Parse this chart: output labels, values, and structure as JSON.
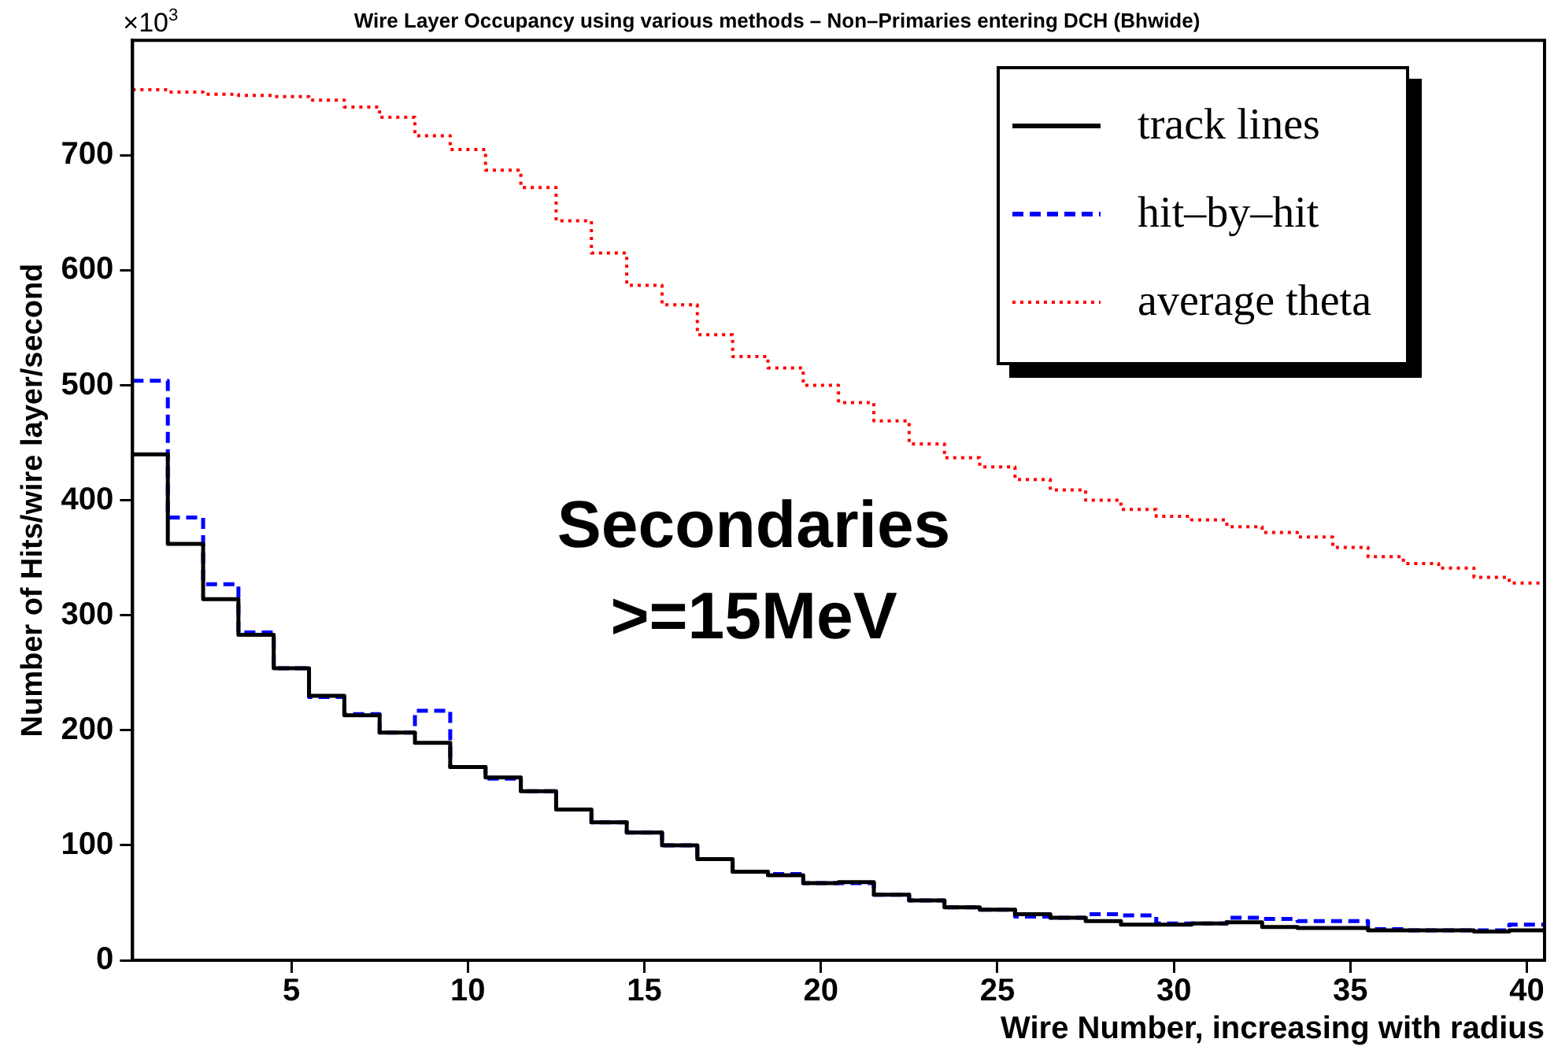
{
  "chart_data": {
    "type": "histogram",
    "title": "Wire Layer Occupancy using various methods – Non–Primaries entering DCH (Bhwide)",
    "xlabel": "Wire Number, increasing with radius",
    "ylabel": "Number of Hits/wire layer/second",
    "bins": [
      0.5,
      1.5,
      2.5,
      3.5,
      4.5,
      5.5,
      6.5,
      7.5,
      8.5,
      9.5,
      10.5,
      11.5,
      12.5,
      13.5,
      14.5,
      15.5,
      16.5,
      17.5,
      18.5,
      19.5,
      20.5,
      21.5,
      22.5,
      23.5,
      24.5,
      25.5,
      26.5,
      27.5,
      28.5,
      29.5,
      30.5,
      31.5,
      32.5,
      33.5,
      34.5,
      35.5,
      36.5,
      37.5,
      38.5,
      39.5,
      40.5
    ],
    "series": [
      {
        "name": "track lines",
        "color": "#000000",
        "line_style": "solid",
        "values": [
          440,
          362,
          314,
          283,
          254,
          230,
          213,
          198,
          189,
          168,
          159,
          147,
          131,
          120,
          111,
          100,
          88,
          77,
          74,
          67,
          68,
          57,
          52,
          46,
          44,
          40,
          37,
          34,
          31,
          31,
          32,
          33,
          29,
          28,
          28,
          26,
          26,
          26,
          25,
          26
        ]
      },
      {
        "name": "hit–by–hit",
        "color": "#0000ff",
        "line_style": "dashed",
        "values": [
          504,
          385,
          327,
          285,
          254,
          229,
          214,
          198,
          217,
          168,
          158,
          147,
          131,
          120,
          111,
          100,
          88,
          77,
          75,
          67,
          67,
          57,
          52,
          46,
          44,
          38,
          37,
          40,
          39,
          32,
          32,
          37,
          36,
          34,
          34,
          27,
          26,
          26,
          26,
          31
        ]
      },
      {
        "name": "average theta",
        "color": "#ff0000",
        "line_style": "dotted",
        "values": [
          757,
          755,
          753,
          752,
          751,
          748,
          742,
          733,
          717,
          705,
          687,
          672,
          643,
          615,
          587,
          570,
          544,
          525,
          515,
          500,
          485,
          469,
          449,
          437,
          429,
          418,
          409,
          400,
          392,
          386,
          383,
          377,
          372,
          368,
          359,
          351,
          345,
          341,
          333,
          328
        ]
      }
    ],
    "xlim": [
      0.5,
      40.5
    ],
    "xticks": [
      5,
      10,
      15,
      20,
      25,
      30,
      35,
      40
    ],
    "ylim": [
      0,
      800
    ],
    "yticks": [
      0,
      100,
      200,
      300,
      400,
      500,
      600,
      700
    ],
    "annotations": [
      "×10$^{3}$",
      "Secondaries",
      ">=15MeV"
    ],
    "legend": "top right",
    "marker": "none",
    "grid": false
  }
}
